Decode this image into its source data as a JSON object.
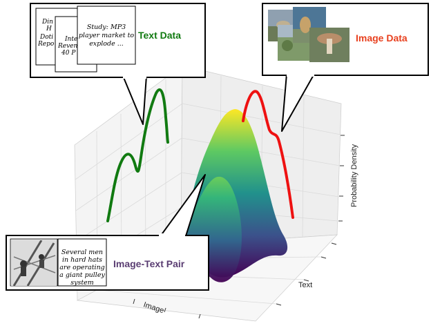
{
  "colors": {
    "text_curve": "#117a11",
    "image_curve": "#ee1111",
    "text_label": "#117a11",
    "image_label": "#e8401e",
    "pair_label": "#5a3d72",
    "grid": "#d9d9d9",
    "pane": "#f2f2f2"
  },
  "callouts": {
    "text_data": {
      "label": "Text Data",
      "doc_back": "Din... H... Doti... Repo...",
      "doc_mid": "Inte... Reven... 40 P...",
      "doc_front": "Study: MP3 player market to explode ..."
    },
    "image_data": {
      "label": "Image Data",
      "thumbnails": [
        "wildlife-photo",
        "bird-photo",
        "landscape-photo",
        "mushroom-photo"
      ]
    },
    "pair": {
      "label": "Image-Text Pair",
      "caption": "Several men in hard hats are operating a giant pulley system",
      "photo": "workers-on-tower-photo"
    }
  },
  "axes": {
    "x_label": "Image",
    "y_label": "Text",
    "z_label": "Probability Density"
  }
}
